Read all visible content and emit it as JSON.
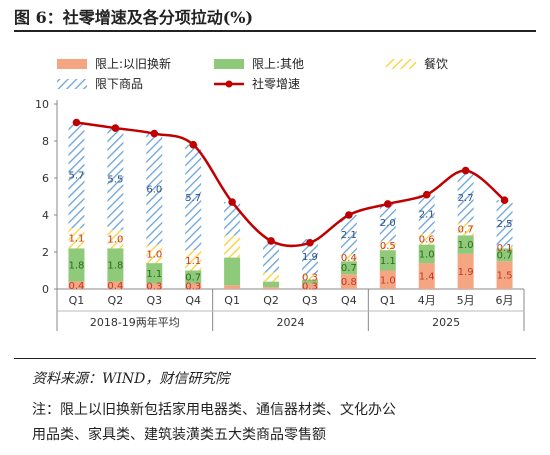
{
  "header": {
    "title": "图 6：社零增速及各分项拉动(%)"
  },
  "footer": {
    "source": "资料来源：WIND，财信研究院",
    "note_line1": "注：限上以旧换新包括家用电器类、通信器材类、文化办公",
    "note_line2": "用品类、家具类、建筑装潢类五大类商品零售额"
  },
  "colors": {
    "trade_in": "#f4a582",
    "other": "#8fc97a",
    "catering": "#ffd54f",
    "below_quota": "#6aa3d8",
    "total_line": "#c00000"
  },
  "chart_data": {
    "type": "bar",
    "stacked": true,
    "categories": [
      "Q1",
      "Q2",
      "Q3",
      "Q4",
      "Q1",
      "Q2",
      "Q3",
      "Q4",
      "Q1",
      "4月",
      "5月",
      "6月"
    ],
    "groups": [
      {
        "label": "2018-19两年平均",
        "count": 4
      },
      {
        "label": "2024",
        "count": 4
      },
      {
        "label": "2025",
        "count": 4
      }
    ],
    "ylim": [
      0,
      10
    ],
    "yticks": [
      0,
      2,
      4,
      6,
      8,
      10
    ],
    "legend": [
      {
        "key": "trade_in",
        "label": "限上:以旧换新"
      },
      {
        "key": "other",
        "label": "限上:其他"
      },
      {
        "key": "catering",
        "label": "餐饮"
      },
      {
        "key": "below_quota",
        "label": "限下商品"
      },
      {
        "key": "total_line",
        "label": "社零增速"
      }
    ],
    "series": [
      {
        "name": "限上:以旧换新",
        "key": "trade_in",
        "values": [
          0.4,
          0.4,
          0.3,
          0.3,
          0.2,
          0.1,
          0.3,
          0.8,
          1.0,
          1.4,
          1.9,
          1.5
        ],
        "labels": [
          "0.4",
          "0.4",
          "0.3",
          "0.3",
          "",
          "",
          "0.3",
          "0.8",
          "1.0",
          "1.4",
          "1.9",
          "1.5"
        ]
      },
      {
        "name": "限上:其他",
        "key": "other",
        "values": [
          1.8,
          1.8,
          1.1,
          0.7,
          1.5,
          0.3,
          0.2,
          0.7,
          1.1,
          1.0,
          1.0,
          0.7
        ],
        "labels": [
          "1.8",
          "1.8",
          "1.1",
          "0.7",
          "",
          "",
          "",
          "0.7",
          "1.1",
          "1.0",
          "1.0",
          "0.7"
        ]
      },
      {
        "name": "餐饮",
        "key": "catering",
        "values": [
          1.1,
          1.0,
          1.0,
          1.1,
          1.2,
          0.5,
          0.3,
          0.4,
          0.5,
          0.6,
          0.7,
          0.1
        ],
        "labels": [
          "1.1",
          "1.0",
          "1.0",
          "1.1",
          "",
          "",
          "0.3",
          "0.4",
          "0.5",
          "0.6",
          "0.7",
          "0.1"
        ]
      },
      {
        "name": "限下商品",
        "key": "below_quota",
        "values": [
          5.7,
          5.5,
          6.0,
          5.7,
          1.8,
          1.6,
          1.9,
          2.1,
          2.0,
          2.1,
          2.7,
          2.5
        ],
        "labels": [
          "5.7",
          "5.5",
          "6.0",
          "5.7",
          "",
          "",
          "1.9",
          "2.1",
          "2.0",
          "2.1",
          "2.7",
          "2.5"
        ]
      }
    ],
    "line": {
      "name": "社零增速",
      "key": "total_line",
      "values": [
        9.0,
        8.7,
        8.4,
        7.8,
        4.7,
        2.6,
        2.5,
        4.0,
        4.6,
        5.1,
        6.4,
        4.8
      ]
    }
  }
}
